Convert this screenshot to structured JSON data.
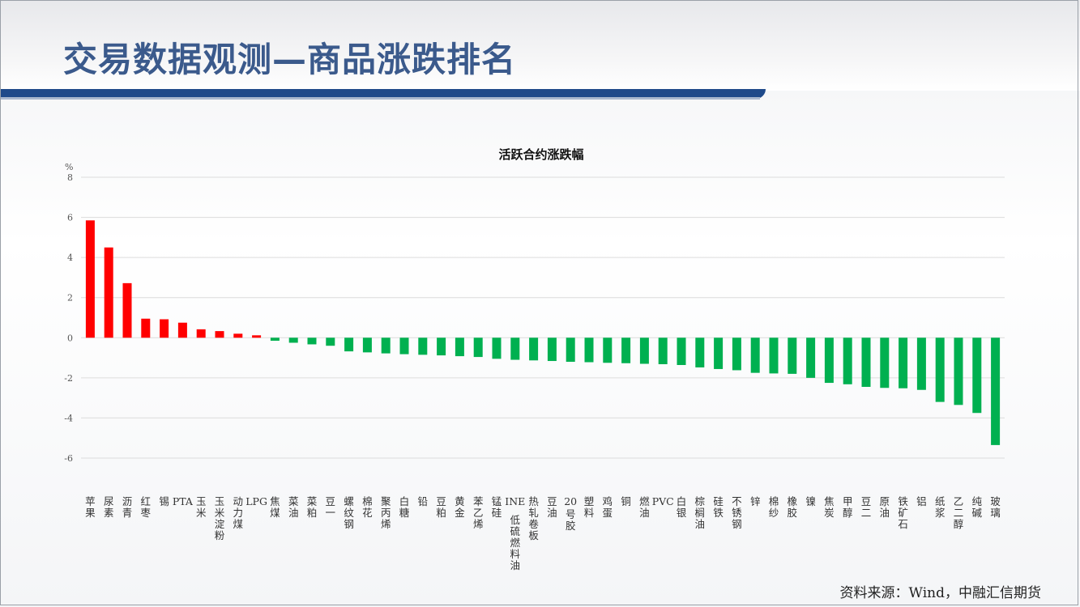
{
  "header": {
    "title": "交易数据观测—商品涨跌排名"
  },
  "footer": {
    "source": "资料来源：Wind，中融汇信期货"
  },
  "colors": {
    "positive": "#ff0000",
    "negative": "#00b050",
    "title_text": "#3b5a8c",
    "title_bar": "#1f4a8a"
  },
  "chart_data": {
    "type": "bar",
    "title": "活跃合约涨跌幅",
    "ylabel": "%",
    "ylim": [
      -6,
      8
    ],
    "yticks": [
      "8",
      "6",
      "4",
      "2",
      "0",
      "-2",
      "-4",
      "-6"
    ],
    "grid": true,
    "categories": [
      "苹果",
      "尿素",
      "沥青",
      "红枣",
      "锡",
      "PTA",
      "玉米",
      "玉米淀粉",
      "动力煤",
      "LPG",
      "焦煤",
      "菜油",
      "菜粕",
      "豆一",
      "螺纹钢",
      "棉花",
      "聚丙烯",
      "白糖",
      "铅",
      "豆粕",
      "黄金",
      "苯乙烯",
      "锰硅",
      "INE低硫燃料油",
      "热轧卷板",
      "豆油",
      "20号胶",
      "塑料",
      "鸡蛋",
      "铜",
      "燃油",
      "PVC",
      "白银",
      "棕榈油",
      "硅铁",
      "不锈钢",
      "锌",
      "棉纱",
      "橡胶",
      "镍",
      "焦炭",
      "甲醇",
      "豆二",
      "原油",
      "铁矿石",
      "铝",
      "纸浆",
      "乙二醇",
      "纯碱",
      "玻璃"
    ],
    "values": [
      5.85,
      4.5,
      2.72,
      0.95,
      0.92,
      0.75,
      0.42,
      0.33,
      0.2,
      0.12,
      -0.15,
      -0.25,
      -0.33,
      -0.4,
      -0.68,
      -0.73,
      -0.78,
      -0.82,
      -0.85,
      -0.88,
      -0.92,
      -0.96,
      -1.05,
      -1.1,
      -1.13,
      -1.16,
      -1.2,
      -1.22,
      -1.25,
      -1.27,
      -1.3,
      -1.32,
      -1.36,
      -1.48,
      -1.56,
      -1.62,
      -1.75,
      -1.78,
      -1.8,
      -2.0,
      -2.25,
      -2.32,
      -2.45,
      -2.5,
      -2.52,
      -2.6,
      -3.2,
      -3.35,
      -3.75,
      -5.35
    ]
  }
}
